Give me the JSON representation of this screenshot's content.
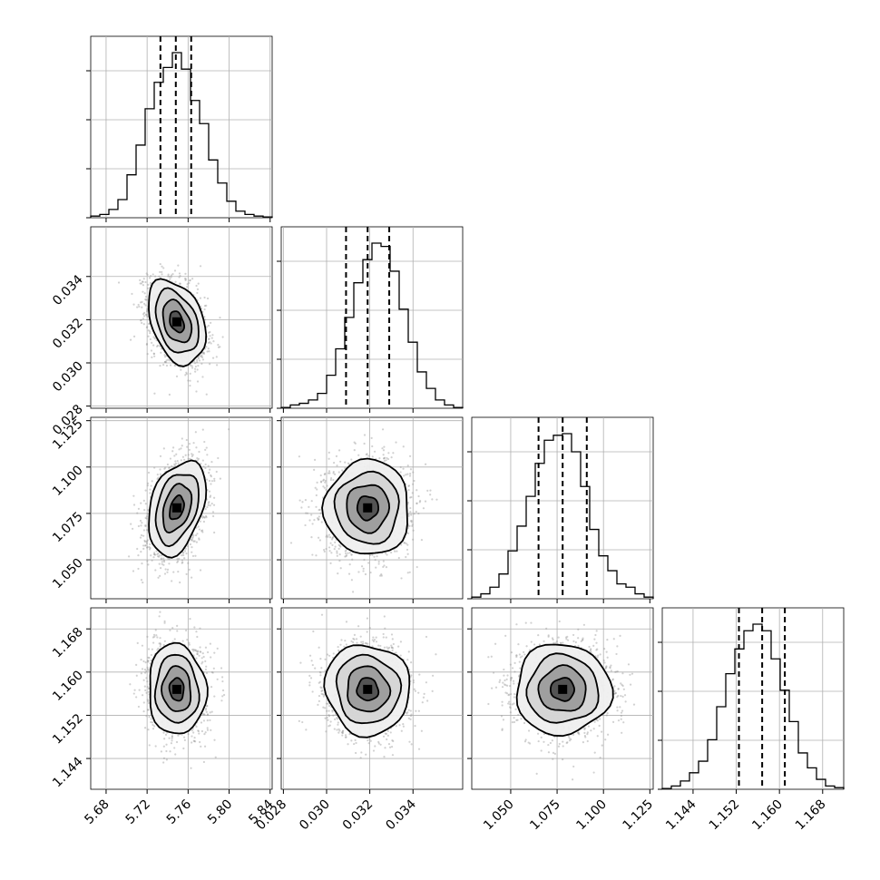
{
  "chart_data": {
    "type": "corner",
    "parameters": [
      {
        "axis_range": [
          5.665,
          5.842
        ],
        "ticks": [
          5.68,
          5.72,
          5.76,
          5.8,
          5.84
        ],
        "tick_labels": [
          "5.68",
          "5.72",
          "5.76",
          "5.80",
          "5.84"
        ],
        "quantiles": [
          5.733,
          5.748,
          5.763
        ],
        "center": 5.749,
        "sigma": 0.014
      },
      {
        "axis_range": [
          0.0279,
          0.0363
        ],
        "ticks": [
          0.028,
          0.03,
          0.032,
          0.034
        ],
        "tick_labels": [
          "0.028",
          "0.030",
          "0.032",
          "0.034"
        ],
        "quantiles": [
          0.0309,
          0.0319,
          0.0329
        ],
        "center": 0.0319,
        "sigma": 0.00098
      },
      {
        "axis_range": [
          1.029,
          1.1268
        ],
        "ticks": [
          1.05,
          1.075,
          1.1,
          1.125
        ],
        "tick_labels": [
          "1.050",
          "1.075",
          "1.100",
          "1.125"
        ],
        "quantiles": [
          1.065,
          1.078,
          1.091
        ],
        "center": 1.078,
        "sigma": 0.0128
      },
      {
        "axis_range": [
          1.1383,
          1.1719
        ],
        "ticks": [
          1.144,
          1.152,
          1.16,
          1.168
        ],
        "tick_labels": [
          "1.144",
          "1.152",
          "1.160",
          "1.168"
        ],
        "quantiles": [
          1.1525,
          1.1568,
          1.161
        ],
        "center": 1.1568,
        "sigma": 0.0042
      }
    ],
    "histograms": [
      {
        "counts": [
          0.01,
          0.02,
          0.05,
          0.11,
          0.26,
          0.44,
          0.66,
          0.82,
          0.91,
          1.0,
          0.9,
          0.71,
          0.57,
          0.35,
          0.21,
          0.1,
          0.04,
          0.02,
          0.01,
          0.005
        ]
      },
      {
        "counts": [
          0.005,
          0.02,
          0.03,
          0.05,
          0.09,
          0.2,
          0.36,
          0.55,
          0.76,
          0.9,
          1.0,
          0.98,
          0.83,
          0.6,
          0.4,
          0.22,
          0.12,
          0.05,
          0.02,
          0.005
        ]
      },
      {
        "counts": [
          0.01,
          0.03,
          0.07,
          0.15,
          0.29,
          0.44,
          0.62,
          0.82,
          0.96,
          0.99,
          1.0,
          0.89,
          0.68,
          0.42,
          0.26,
          0.17,
          0.09,
          0.07,
          0.03,
          0.01
        ]
      },
      {
        "counts": [
          0.005,
          0.02,
          0.05,
          0.1,
          0.17,
          0.3,
          0.5,
          0.7,
          0.85,
          0.96,
          1.0,
          0.96,
          0.79,
          0.6,
          0.41,
          0.22,
          0.13,
          0.06,
          0.02,
          0.01
        ]
      }
    ],
    "correlations": {
      "1,0": -0.35,
      "2,0": 0.35,
      "2,1": 0.0,
      "3,0": -0.05,
      "3,1": -0.05,
      "3,2": 0.0
    },
    "contour_levels_sigma": [
      0.5,
      1.0,
      1.5,
      2.0
    ],
    "grid": true,
    "quantile_style": "dashed"
  }
}
